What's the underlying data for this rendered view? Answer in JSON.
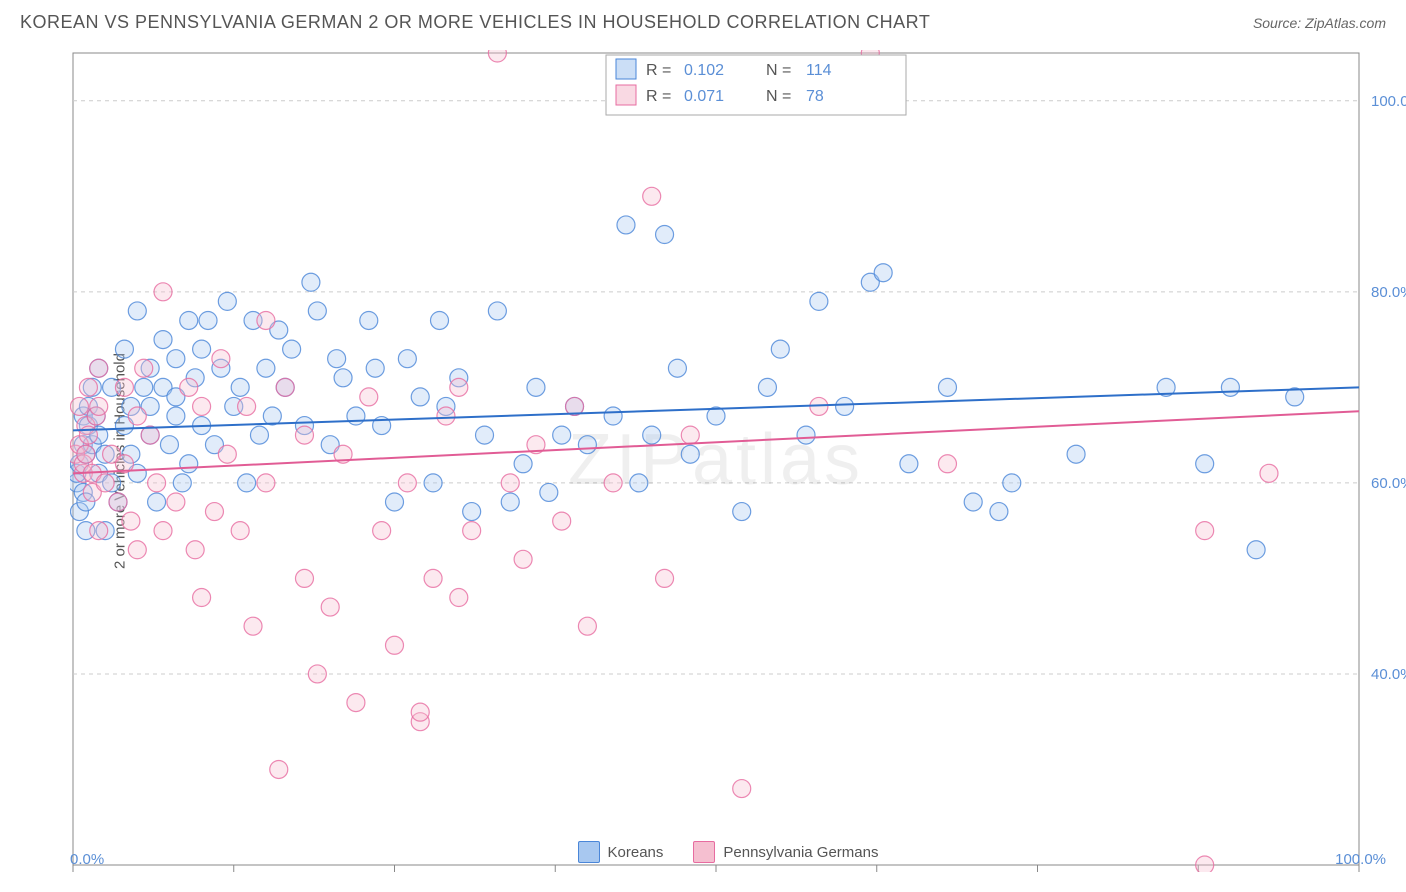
{
  "title": "KOREAN VS PENNSYLVANIA GERMAN 2 OR MORE VEHICLES IN HOUSEHOLD CORRELATION CHART",
  "source_label": "Source: ",
  "source_name": "ZipAtlas.com",
  "y_axis_label": "2 or more Vehicles in Household",
  "watermark": "ZIPatlas",
  "chart": {
    "type": "scatter",
    "background_color": "#ffffff",
    "grid_color": "#cccccc",
    "axis_color": "#888888",
    "xlim": [
      0,
      100
    ],
    "ylim": [
      20,
      105
    ],
    "y_ticks": [
      40,
      60,
      80,
      100
    ],
    "y_tick_labels": [
      "40.0%",
      "60.0%",
      "80.0%",
      "100.0%"
    ],
    "x_tick_positions": [
      0,
      12.5,
      25,
      37.5,
      50,
      62.5,
      75,
      87.5,
      100
    ],
    "x_min_label": "0.0%",
    "x_max_label": "100.0%",
    "marker_radius": 9,
    "marker_fill_opacity": 0.35,
    "marker_stroke_width": 1.2,
    "trend_line_width": 2,
    "series": [
      {
        "name": "Koreans",
        "color_fill": "#a8c8f0",
        "color_stroke": "#4a86d8",
        "trend_color": "#2e6fc9",
        "r_value": "0.102",
        "n_value": "114",
        "trend": {
          "y_at_x0": 65.5,
          "y_at_x100": 70.0
        },
        "points": [
          [
            0.3,
            60
          ],
          [
            0.3,
            61
          ],
          [
            0.5,
            57
          ],
          [
            0.5,
            62
          ],
          [
            0.8,
            64
          ],
          [
            0.8,
            67
          ],
          [
            0.8,
            59
          ],
          [
            1,
            63
          ],
          [
            1,
            58
          ],
          [
            1,
            55
          ],
          [
            1.2,
            66
          ],
          [
            1.2,
            68
          ],
          [
            1.5,
            64
          ],
          [
            1.5,
            70
          ],
          [
            1.8,
            67
          ],
          [
            2,
            72
          ],
          [
            2,
            65
          ],
          [
            2,
            61
          ],
          [
            2.5,
            63
          ],
          [
            2.5,
            55
          ],
          [
            3,
            70
          ],
          [
            3,
            60
          ],
          [
            3.5,
            58
          ],
          [
            4,
            74
          ],
          [
            4,
            66
          ],
          [
            4.5,
            68
          ],
          [
            4.5,
            63
          ],
          [
            5,
            78
          ],
          [
            5,
            61
          ],
          [
            5.5,
            70
          ],
          [
            6,
            72
          ],
          [
            6,
            65
          ],
          [
            6,
            68
          ],
          [
            6.5,
            58
          ],
          [
            7,
            75
          ],
          [
            7,
            70
          ],
          [
            7.5,
            64
          ],
          [
            8,
            69
          ],
          [
            8,
            73
          ],
          [
            8,
            67
          ],
          [
            8.5,
            60
          ],
          [
            9,
            77
          ],
          [
            9,
            62
          ],
          [
            9.5,
            71
          ],
          [
            10,
            74
          ],
          [
            10,
            66
          ],
          [
            10.5,
            77
          ],
          [
            11,
            64
          ],
          [
            11.5,
            72
          ],
          [
            12,
            79
          ],
          [
            12.5,
            68
          ],
          [
            13,
            70
          ],
          [
            13.5,
            60
          ],
          [
            14,
            77
          ],
          [
            14.5,
            65
          ],
          [
            15,
            72
          ],
          [
            15.5,
            67
          ],
          [
            16,
            76
          ],
          [
            16.5,
            70
          ],
          [
            17,
            74
          ],
          [
            18,
            66
          ],
          [
            18.5,
            81
          ],
          [
            19,
            78
          ],
          [
            20,
            64
          ],
          [
            20.5,
            73
          ],
          [
            21,
            71
          ],
          [
            22,
            67
          ],
          [
            23,
            77
          ],
          [
            23.5,
            72
          ],
          [
            24,
            66
          ],
          [
            25,
            58
          ],
          [
            26,
            73
          ],
          [
            27,
            69
          ],
          [
            28,
            60
          ],
          [
            28.5,
            77
          ],
          [
            29,
            68
          ],
          [
            30,
            71
          ],
          [
            31,
            57
          ],
          [
            32,
            65
          ],
          [
            33,
            78
          ],
          [
            34,
            58
          ],
          [
            35,
            62
          ],
          [
            36,
            70
          ],
          [
            37,
            59
          ],
          [
            38,
            65
          ],
          [
            39,
            68
          ],
          [
            40,
            64
          ],
          [
            42,
            67
          ],
          [
            43,
            87
          ],
          [
            44,
            60
          ],
          [
            45,
            65
          ],
          [
            46,
            86
          ],
          [
            47,
            72
          ],
          [
            48,
            63
          ],
          [
            50,
            67
          ],
          [
            52,
            57
          ],
          [
            54,
            70
          ],
          [
            55,
            74
          ],
          [
            57,
            65
          ],
          [
            58,
            79
          ],
          [
            60,
            68
          ],
          [
            62,
            81
          ],
          [
            63,
            82
          ],
          [
            65,
            62
          ],
          [
            68,
            70
          ],
          [
            70,
            58
          ],
          [
            72,
            57
          ],
          [
            73,
            60
          ],
          [
            78,
            63
          ],
          [
            85,
            70
          ],
          [
            88,
            62
          ],
          [
            90,
            70
          ],
          [
            92,
            53
          ],
          [
            95,
            69
          ]
        ]
      },
      {
        "name": "Pennsylvania Germans",
        "color_fill": "#f5bfd0",
        "color_stroke": "#e76ca0",
        "trend_color": "#e15c95",
        "r_value": "0.071",
        "n_value": "78",
        "trend": {
          "y_at_x0": 61.0,
          "y_at_x100": 67.5
        },
        "points": [
          [
            0.2,
            63
          ],
          [
            0.5,
            64
          ],
          [
            0.5,
            68
          ],
          [
            0.8,
            61
          ],
          [
            0.8,
            62
          ],
          [
            1,
            66
          ],
          [
            1,
            63
          ],
          [
            1.2,
            65
          ],
          [
            1.2,
            70
          ],
          [
            1.5,
            59
          ],
          [
            1.5,
            61
          ],
          [
            1.8,
            67
          ],
          [
            2,
            55
          ],
          [
            2,
            68
          ],
          [
            2,
            72
          ],
          [
            2.5,
            60
          ],
          [
            3,
            63
          ],
          [
            3.5,
            58
          ],
          [
            4,
            70
          ],
          [
            4,
            62
          ],
          [
            4.5,
            56
          ],
          [
            5,
            67
          ],
          [
            5,
            53
          ],
          [
            5.5,
            72
          ],
          [
            6,
            65
          ],
          [
            6.5,
            60
          ],
          [
            7,
            80
          ],
          [
            7,
            55
          ],
          [
            8,
            58
          ],
          [
            9,
            70
          ],
          [
            9.5,
            53
          ],
          [
            10,
            68
          ],
          [
            10,
            48
          ],
          [
            11,
            57
          ],
          [
            11.5,
            73
          ],
          [
            12,
            63
          ],
          [
            13,
            55
          ],
          [
            13.5,
            68
          ],
          [
            14,
            45
          ],
          [
            15,
            60
          ],
          [
            15,
            77
          ],
          [
            16,
            30
          ],
          [
            16.5,
            70
          ],
          [
            18,
            50
          ],
          [
            18,
            65
          ],
          [
            19,
            40
          ],
          [
            20,
            47
          ],
          [
            21,
            63
          ],
          [
            22,
            37
          ],
          [
            23,
            69
          ],
          [
            24,
            55
          ],
          [
            25,
            43
          ],
          [
            26,
            60
          ],
          [
            27,
            35
          ],
          [
            27,
            36
          ],
          [
            28,
            50
          ],
          [
            29,
            67
          ],
          [
            30,
            70
          ],
          [
            30,
            48
          ],
          [
            31,
            55
          ],
          [
            33,
            105
          ],
          [
            34,
            60
          ],
          [
            35,
            52
          ],
          [
            36,
            64
          ],
          [
            38,
            56
          ],
          [
            39,
            68
          ],
          [
            40,
            45
          ],
          [
            42,
            60
          ],
          [
            45,
            90
          ],
          [
            46,
            50
          ],
          [
            48,
            65
          ],
          [
            52,
            28
          ],
          [
            58,
            68
          ],
          [
            62,
            105
          ],
          [
            68,
            62
          ],
          [
            88,
            20
          ],
          [
            93,
            61
          ],
          [
            88,
            55
          ]
        ]
      }
    ],
    "legend_labels": {
      "r": "R =",
      "n": "N ="
    }
  }
}
